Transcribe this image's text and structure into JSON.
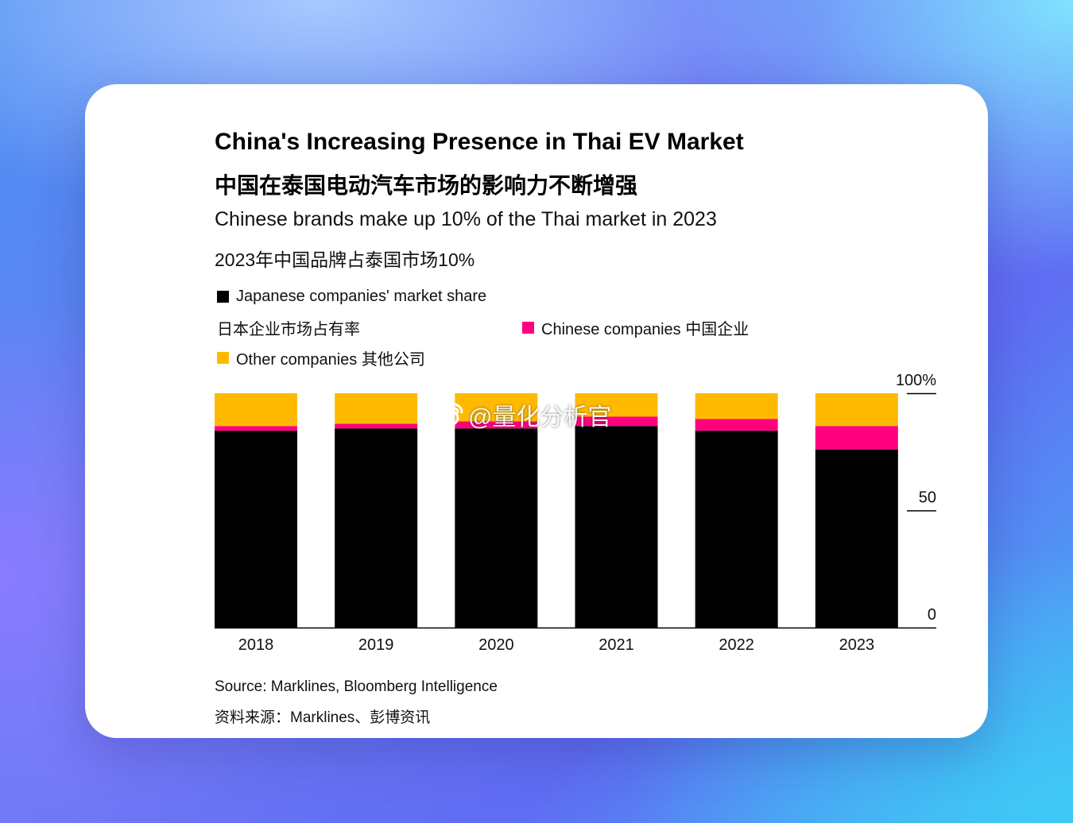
{
  "title": "China's Increasing Presence in Thai EV Market",
  "title_cn": "中国在泰国电动汽车市场的影响力不断增强",
  "subtitle": "Chinese brands make up 10% of the Thai market in 2023",
  "subtitle_cn": "2023年中国品牌占泰国市场10%",
  "legend": {
    "japanese": "Japanese companies' market share",
    "japanese_cn": "日本企业市场占有率",
    "chinese": "Chinese companies 中国企业",
    "other": "Other companies 其他公司"
  },
  "source": "Source: Marklines, Bloomberg Intelligence",
  "source_cn": "资料来源：Marklines、彭博资讯",
  "watermark": "@量化分析官",
  "chart_data": {
    "type": "bar",
    "stacked": true,
    "categories": [
      "2018",
      "2019",
      "2020",
      "2021",
      "2022",
      "2023"
    ],
    "series": [
      {
        "name": "Japanese companies' market share",
        "color": "#000000",
        "values": [
          84,
          85,
          85,
          86,
          84,
          76
        ]
      },
      {
        "name": "Chinese companies",
        "color": "#ff007f",
        "values": [
          2,
          2,
          3,
          4,
          5,
          10
        ]
      },
      {
        "name": "Other companies",
        "color": "#ffba00",
        "values": [
          14,
          13,
          12,
          10,
          11,
          14
        ]
      }
    ],
    "y_ticks": [
      "0",
      "50",
      "100%"
    ],
    "ylim": [
      0,
      100
    ],
    "axis_side": "right",
    "grid": false,
    "legend_position": "top-left"
  }
}
